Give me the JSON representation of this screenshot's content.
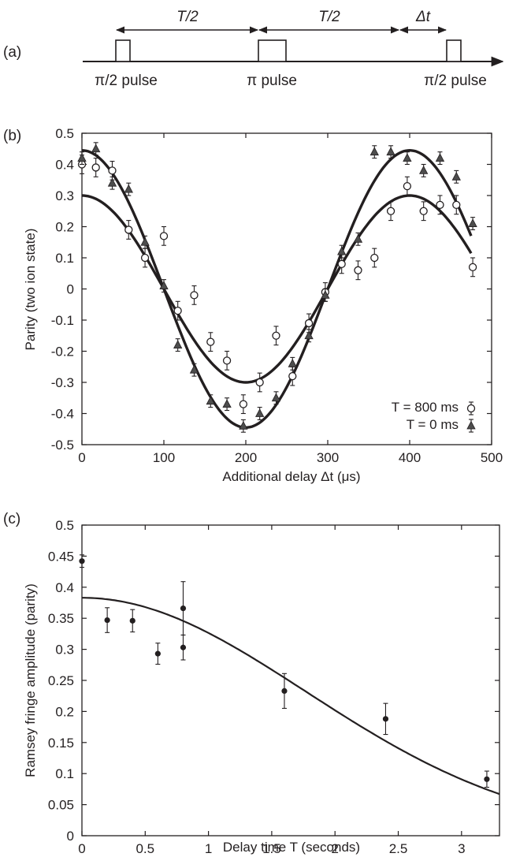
{
  "panel_a": {
    "label": "(a)",
    "pulses": [
      {
        "name": "π/2 pulse",
        "label": "π/2 pulse"
      },
      {
        "name": "π pulse",
        "label": "π pulse"
      },
      {
        "name": "π/2 pulse",
        "label": "π/2 pulse"
      }
    ],
    "intervals": [
      "T/2",
      "T/2",
      "Δt"
    ]
  },
  "chart_data": [
    {
      "panel": "(b)",
      "type": "scatter",
      "xlabel": "Additional delay Δt (μs)",
      "ylabel": "Parity (two ion state)",
      "xlim": [
        0,
        500
      ],
      "ylim": [
        -0.5,
        0.5
      ],
      "xticks": [
        "0",
        "100",
        "200",
        "300",
        "400",
        "500"
      ],
      "yticks": [
        "-0.5",
        "-0.4",
        "-0.3",
        "-0.2",
        "-0.1",
        "0",
        "0.1",
        "0.2",
        "0.3",
        "0.4",
        "0.5"
      ],
      "grid": false,
      "legend_position": "bottom-right",
      "series": [
        {
          "name": "T = 800 ms",
          "marker": "circle",
          "x": [
            0,
            17,
            37,
            57,
            77,
            100,
            117,
            137,
            157,
            177,
            197,
            217,
            237,
            257,
            277,
            297,
            317,
            337,
            357,
            377,
            397,
            417,
            437,
            457,
            477
          ],
          "y": [
            0.4,
            0.39,
            0.38,
            0.19,
            0.1,
            0.17,
            -0.07,
            -0.02,
            -0.17,
            -0.23,
            -0.37,
            -0.3,
            -0.15,
            -0.28,
            -0.11,
            -0.01,
            0.08,
            0.06,
            0.1,
            0.25,
            0.33,
            0.25,
            0.27,
            0.27,
            0.07
          ],
          "err": [
            0.03,
            0.03,
            0.03,
            0.03,
            0.03,
            0.03,
            0.03,
            0.03,
            0.03,
            0.03,
            0.03,
            0.03,
            0.03,
            0.03,
            0.03,
            0.03,
            0.03,
            0.03,
            0.03,
            0.03,
            0.03,
            0.03,
            0.03,
            0.03,
            0.03
          ],
          "fit": {
            "amplitude": 0.3,
            "period_us": 400,
            "offset": 0.0
          }
        },
        {
          "name": "T = 0 ms",
          "marker": "triangle",
          "x": [
            0,
            17,
            37,
            57,
            77,
            100,
            117,
            137,
            157,
            177,
            197,
            217,
            237,
            257,
            277,
            297,
            317,
            337,
            357,
            377,
            397,
            417,
            437,
            457,
            477
          ],
          "y": [
            0.42,
            0.45,
            0.34,
            0.32,
            0.15,
            0.01,
            -0.18,
            -0.26,
            -0.36,
            -0.37,
            -0.44,
            -0.4,
            -0.35,
            -0.24,
            -0.15,
            -0.02,
            0.12,
            0.16,
            0.44,
            0.44,
            0.42,
            0.38,
            0.42,
            0.36,
            0.21
          ],
          "err": [
            0.02,
            0.02,
            0.02,
            0.02,
            0.02,
            0.02,
            0.02,
            0.02,
            0.02,
            0.02,
            0.02,
            0.02,
            0.02,
            0.02,
            0.02,
            0.02,
            0.02,
            0.02,
            0.02,
            0.02,
            0.02,
            0.02,
            0.02,
            0.02,
            0.02
          ],
          "fit": {
            "amplitude": 0.445,
            "period_us": 400,
            "offset": 0.0
          }
        }
      ]
    },
    {
      "panel": "(c)",
      "type": "scatter",
      "xlabel": "Delay time T (seconds)",
      "ylabel": "Ramsey fringe amplitude (parity)",
      "xlim": [
        0,
        3.3
      ],
      "ylim": [
        0,
        0.5
      ],
      "xticks": [
        "0",
        "0.5",
        "1",
        "1.5",
        "2",
        "2.5",
        "3"
      ],
      "yticks": [
        "0",
        "0.05",
        "0.1",
        "0.15",
        "0.2",
        "0.25",
        "0.3",
        "0.35",
        "0.4",
        "0.45",
        "0.5"
      ],
      "grid": false,
      "series": [
        {
          "name": "",
          "marker": "filled-circle",
          "x": [
            0,
            0.2,
            0.4,
            0.6,
            0.8,
            0.8,
            1.6,
            2.4,
            3.2
          ],
          "y": [
            0.442,
            0.347,
            0.346,
            0.293,
            0.303,
            0.366,
            0.233,
            0.188,
            0.091
          ],
          "err": [
            0.01,
            0.02,
            0.018,
            0.017,
            0.02,
            0.043,
            0.028,
            0.025,
            0.013
          ],
          "fit": {
            "A0": 0.383,
            "tau_s": 2.5,
            "model": "A0*exp(-(T/tau)^2)"
          }
        }
      ]
    }
  ]
}
